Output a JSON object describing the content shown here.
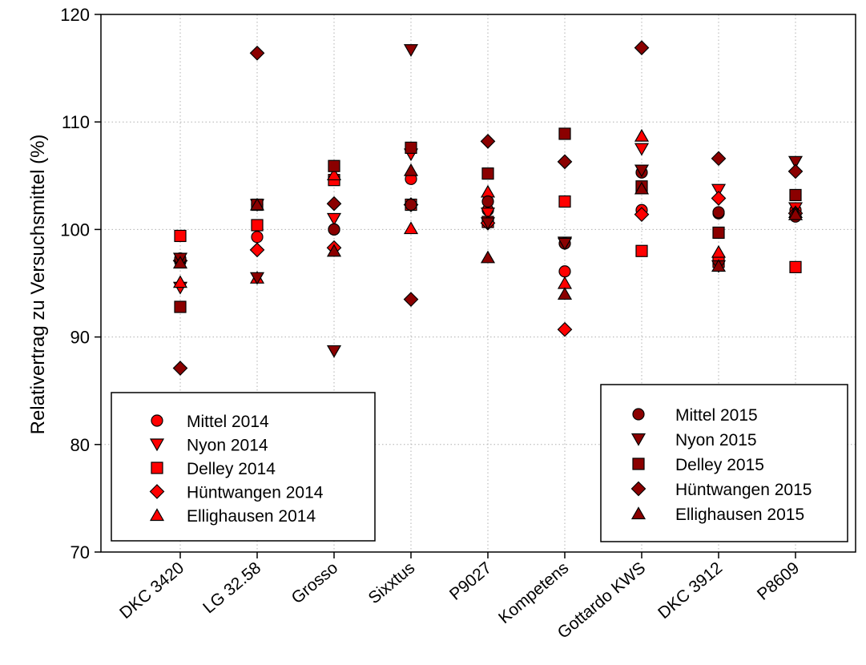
{
  "colors": {
    "series_2014": "#ff0000",
    "series_2015": "#8b0000",
    "stroke": "#000000",
    "grid": "#b0b0b0"
  },
  "chart_data": {
    "type": "scatter",
    "title": "",
    "xlabel": "",
    "ylabel": "Relativertrag zu Versuchsmittel (%)",
    "ylim": [
      70,
      120
    ],
    "yticks": [
      70,
      80,
      90,
      100,
      110,
      120
    ],
    "grid": true,
    "categories": [
      "DKC 3420",
      "LG 32.58",
      "Grosso",
      "Sixxtus",
      "P9027",
      "Kompetens",
      "Gottardo KWS",
      "DKC 3912",
      "P8609"
    ],
    "series": [
      {
        "name": "Mittel 2014",
        "marker": "circle",
        "year": "2014",
        "values": [
          97.0,
          99.3,
          100.0,
          104.7,
          101.8,
          96.1,
          101.8,
          101.5,
          101.8
        ]
      },
      {
        "name": "Nyon 2014",
        "marker": "triangle-down",
        "year": "2014",
        "values": [
          94.6,
          102.3,
          101.0,
          107.0,
          101.5,
          98.8,
          107.5,
          103.7,
          102.0
        ]
      },
      {
        "name": "Delley 2014",
        "marker": "square",
        "year": "2014",
        "values": [
          99.4,
          100.4,
          104.6,
          102.3,
          100.7,
          102.6,
          98.0,
          97.0,
          96.5
        ]
      },
      {
        "name": "Hüntwangen 2014",
        "marker": "diamond",
        "year": "2014",
        "values": [
          97.1,
          98.1,
          98.3,
          102.3,
          100.6,
          90.7,
          101.4,
          102.9,
          101.5
        ]
      },
      {
        "name": "Ellighausen 2014",
        "marker": "triangle-up",
        "year": "2014",
        "values": [
          95.1,
          95.5,
          105.1,
          100.1,
          103.5,
          95.0,
          108.7,
          97.9,
          101.6
        ]
      },
      {
        "name": "Mittel 2015",
        "marker": "circle",
        "year": "2015",
        "values": [
          97.3,
          102.3,
          100.0,
          102.3,
          102.6,
          98.7,
          105.3,
          101.6,
          101.2
        ]
      },
      {
        "name": "Nyon 2015",
        "marker": "triangle-down",
        "year": "2015",
        "values": [
          97.3,
          95.5,
          88.7,
          116.7,
          100.6,
          98.7,
          105.5,
          96.6,
          106.3
        ]
      },
      {
        "name": "Delley 2015",
        "marker": "square",
        "year": "2015",
        "values": [
          92.8,
          102.3,
          105.9,
          107.6,
          105.2,
          108.9,
          104.0,
          99.7,
          103.2
        ]
      },
      {
        "name": "Hüntwangen 2015",
        "marker": "diamond",
        "year": "2015",
        "values": [
          87.1,
          116.4,
          102.4,
          93.5,
          108.2,
          106.3,
          116.9,
          106.6,
          105.4
        ]
      },
      {
        "name": "Ellighausen 2015",
        "marker": "triangle-up",
        "year": "2015",
        "values": [
          96.9,
          102.3,
          98.0,
          105.5,
          97.4,
          94.0,
          103.8,
          96.6,
          101.4
        ]
      }
    ],
    "legends": [
      {
        "position": "lower-left",
        "entries": [
          "Mittel 2014",
          "Nyon 2014",
          "Delley 2014",
          "Hüntwangen 2014",
          "Ellighausen 2014"
        ]
      },
      {
        "position": "lower-right",
        "entries": [
          "Mittel 2015",
          "Nyon 2015",
          "Delley 2015",
          "Hüntwangen 2015",
          "Ellighausen 2015"
        ]
      }
    ]
  }
}
